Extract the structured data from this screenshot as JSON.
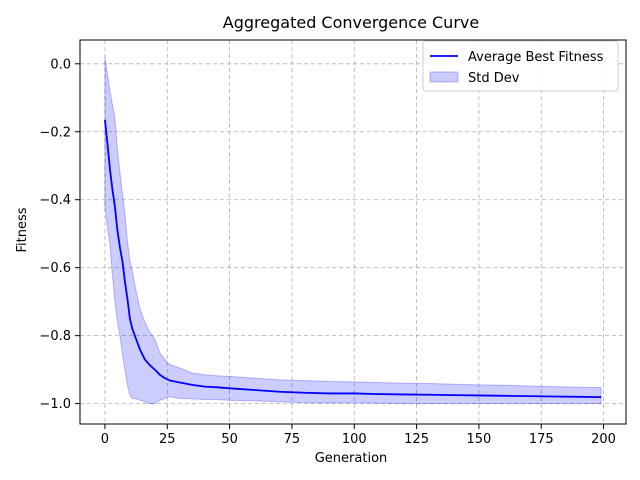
{
  "chart_data": {
    "type": "line",
    "title": "Aggregated Convergence Curve",
    "xlabel": "Generation",
    "ylabel": "Fitness",
    "xlim": [
      -10,
      209
    ],
    "ylim": [
      -1.06,
      0.07
    ],
    "xticks": [
      0,
      25,
      50,
      75,
      100,
      125,
      150,
      175,
      200
    ],
    "yticks": [
      0.0,
      -0.2,
      -0.4,
      -0.6,
      -0.8,
      -1.0
    ],
    "xtick_labels": [
      "0",
      "25",
      "50",
      "75",
      "100",
      "125",
      "150",
      "175",
      "200"
    ],
    "ytick_labels": [
      "0.0",
      "−0.2",
      "−0.4",
      "−0.6",
      "−0.8",
      "−1.0"
    ],
    "grid": true,
    "legend_position": "top-right",
    "series": [
      {
        "name": "Average Best Fitness",
        "kind": "line",
        "color": "#0000ff",
        "x": [
          0,
          1,
          2,
          3,
          4,
          5,
          6,
          7,
          8,
          9,
          10,
          11,
          12,
          14,
          16,
          18,
          20,
          22,
          24,
          26,
          28,
          30,
          35,
          40,
          45,
          50,
          60,
          70,
          80,
          90,
          100,
          110,
          120,
          130,
          140,
          150,
          160,
          170,
          180,
          190,
          199
        ],
        "y": [
          -0.165,
          -0.235,
          -0.31,
          -0.37,
          -0.42,
          -0.49,
          -0.54,
          -0.58,
          -0.64,
          -0.69,
          -0.75,
          -0.78,
          -0.8,
          -0.84,
          -0.87,
          -0.887,
          -0.9,
          -0.915,
          -0.925,
          -0.932,
          -0.935,
          -0.938,
          -0.945,
          -0.95,
          -0.952,
          -0.955,
          -0.96,
          -0.965,
          -0.968,
          -0.97,
          -0.97,
          -0.972,
          -0.973,
          -0.974,
          -0.975,
          -0.976,
          -0.977,
          -0.978,
          -0.979,
          -0.98,
          -0.981
        ]
      },
      {
        "name": "Std Dev",
        "kind": "band",
        "color": "#0000ff",
        "fill_opacity": 0.2,
        "x": [
          0,
          1,
          2,
          3,
          4,
          5,
          6,
          7,
          8,
          9,
          10,
          11,
          12,
          14,
          16,
          18,
          20,
          22,
          24,
          26,
          28,
          30,
          35,
          40,
          45,
          50,
          60,
          70,
          80,
          90,
          100,
          110,
          120,
          130,
          140,
          150,
          160,
          170,
          180,
          190,
          199
        ],
        "upper": [
          0.02,
          -0.03,
          -0.08,
          -0.12,
          -0.16,
          -0.25,
          -0.32,
          -0.38,
          -0.44,
          -0.52,
          -0.58,
          -0.61,
          -0.65,
          -0.72,
          -0.76,
          -0.79,
          -0.81,
          -0.85,
          -0.87,
          -0.885,
          -0.89,
          -0.895,
          -0.91,
          -0.915,
          -0.918,
          -0.92,
          -0.925,
          -0.93,
          -0.932,
          -0.935,
          -0.936,
          -0.938,
          -0.94,
          -0.941,
          -0.943,
          -0.945,
          -0.946,
          -0.948,
          -0.95,
          -0.952,
          -0.953
        ],
        "lower": [
          -0.42,
          -0.48,
          -0.53,
          -0.62,
          -0.7,
          -0.76,
          -0.8,
          -0.85,
          -0.9,
          -0.945,
          -0.975,
          -0.985,
          -0.985,
          -0.99,
          -0.995,
          -1.0,
          -1.0,
          -0.99,
          -0.985,
          -0.98,
          -0.982,
          -0.985,
          -0.986,
          -0.988,
          -0.988,
          -0.99,
          -0.992,
          -0.995,
          -0.997,
          -0.998,
          -0.998,
          -0.999,
          -1.0,
          -1.0,
          -1.0,
          -1.0,
          -1.0,
          -1.0,
          -1.0,
          -1.0,
          -1.0
        ]
      }
    ]
  }
}
